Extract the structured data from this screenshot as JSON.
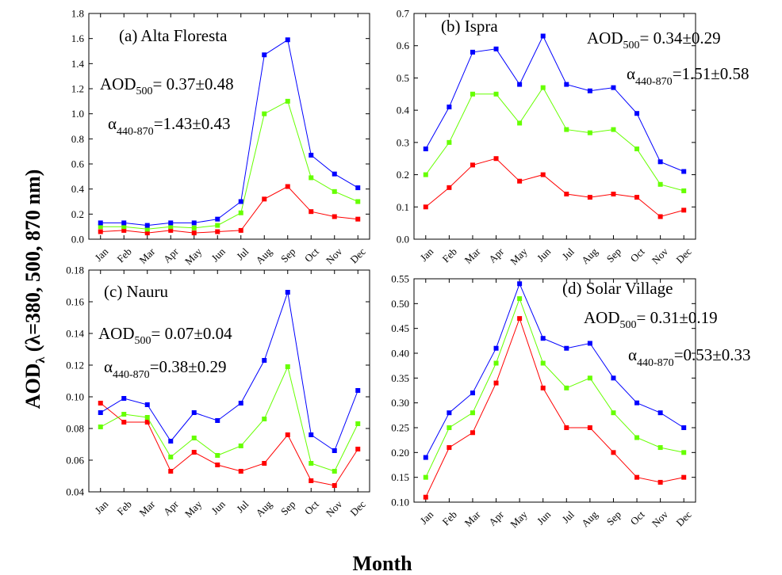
{
  "figure": {
    "ylabel_main": "AOD",
    "ylabel_sub": "λ",
    "ylabel_rest": " (λ=380, 500, 870 nm)",
    "xlabel": "Month"
  },
  "colors": {
    "blue": "#0000ff",
    "green": "#66ff00",
    "red": "#ff0000"
  },
  "chart_data": [
    {
      "type": "line",
      "title": "(a) Alta Floresta",
      "categories": [
        "Jan",
        "Feb",
        "Mar",
        "Apr",
        "May",
        "Jun",
        "Jul",
        "Aug",
        "Sep",
        "Oct",
        "Nov",
        "Dec"
      ],
      "ylim": [
        0,
        1.8
      ],
      "yticks": [
        "0.0",
        "0.2",
        "0.4",
        "0.6",
        "0.8",
        "1.0",
        "1.2",
        "1.4",
        "1.6",
        "1.8"
      ],
      "aod_main": "AOD",
      "aod_sub": "500",
      "aod_value": "= 0.37±0.48",
      "alpha_main": "α",
      "alpha_sub": "440-870",
      "alpha_value": "=1.43±0.43",
      "series": [
        {
          "color": "blue",
          "values": [
            0.13,
            0.13,
            0.11,
            0.13,
            0.13,
            0.16,
            0.3,
            1.47,
            1.59,
            0.67,
            0.52,
            0.41
          ]
        },
        {
          "color": "green",
          "values": [
            0.1,
            0.1,
            0.08,
            0.1,
            0.09,
            0.11,
            0.21,
            1.0,
            1.1,
            0.49,
            0.38,
            0.3
          ]
        },
        {
          "color": "red",
          "values": [
            0.06,
            0.07,
            0.05,
            0.07,
            0.05,
            0.06,
            0.07,
            0.32,
            0.42,
            0.22,
            0.18,
            0.16
          ]
        }
      ]
    },
    {
      "type": "line",
      "title": "(b) Ispra",
      "categories": [
        "Jan",
        "Feb",
        "Mar",
        "Apr",
        "May",
        "Jun",
        "Jul",
        "Aug",
        "Sep",
        "Oct",
        "Nov",
        "Dec"
      ],
      "ylim": [
        0,
        0.7
      ],
      "yticks": [
        "0.0",
        "0.1",
        "0.2",
        "0.3",
        "0.4",
        "0.5",
        "0.6",
        "0.7"
      ],
      "aod_main": "AOD",
      "aod_sub": "500",
      "aod_value": "= 0.34±0.29",
      "alpha_main": "α",
      "alpha_sub": "440-870",
      "alpha_value": "=1.51±0.58",
      "series": [
        {
          "color": "blue",
          "values": [
            0.28,
            0.41,
            0.58,
            0.59,
            0.48,
            0.63,
            0.48,
            0.46,
            0.47,
            0.39,
            0.24,
            0.21
          ]
        },
        {
          "color": "green",
          "values": [
            0.2,
            0.3,
            0.45,
            0.45,
            0.36,
            0.47,
            0.34,
            0.33,
            0.34,
            0.28,
            0.17,
            0.15
          ]
        },
        {
          "color": "red",
          "values": [
            0.1,
            0.16,
            0.23,
            0.25,
            0.18,
            0.2,
            0.14,
            0.13,
            0.14,
            0.13,
            0.07,
            0.09
          ]
        }
      ]
    },
    {
      "type": "line",
      "title": "(c) Nauru",
      "categories": [
        "Jan",
        "Feb",
        "Mar",
        "Apr",
        "May",
        "Jun",
        "Jul",
        "Aug",
        "Sep",
        "Oct",
        "Nov",
        "Dec"
      ],
      "ylim": [
        0.04,
        0.18
      ],
      "yticks": [
        "0.04",
        "0.06",
        "0.08",
        "0.10",
        "0.12",
        "0.14",
        "0.16",
        "0.18"
      ],
      "aod_main": "AOD",
      "aod_sub": "500",
      "aod_value": "= 0.07±0.04",
      "alpha_main": "α",
      "alpha_sub": "440-870",
      "alpha_value": "=0.38±0.29",
      "series": [
        {
          "color": "blue",
          "values": [
            0.09,
            0.099,
            0.095,
            0.072,
            0.09,
            0.085,
            0.096,
            0.123,
            0.166,
            0.076,
            0.066,
            0.104
          ]
        },
        {
          "color": "green",
          "values": [
            0.081,
            0.089,
            0.087,
            0.062,
            0.074,
            0.063,
            0.069,
            0.086,
            0.119,
            0.058,
            0.053,
            0.083
          ]
        },
        {
          "color": "red",
          "values": [
            0.096,
            0.084,
            0.084,
            0.053,
            0.065,
            0.057,
            0.053,
            0.058,
            0.076,
            0.047,
            0.044,
            0.067
          ]
        }
      ]
    },
    {
      "type": "line",
      "title": "(d) Solar Village",
      "categories": [
        "Jan",
        "Feb",
        "Mar",
        "Apr",
        "May",
        "Jun",
        "Jul",
        "Aug",
        "Sep",
        "Oct",
        "Nov",
        "Dec"
      ],
      "ylim": [
        0.1,
        0.55
      ],
      "yticks": [
        "0.10",
        "0.15",
        "0.20",
        "0.25",
        "0.30",
        "0.35",
        "0.40",
        "0.45",
        "0.50",
        "0.55"
      ],
      "aod_main": "AOD",
      "aod_sub": "500",
      "aod_value": "= 0.31±0.19",
      "alpha_main": "α",
      "alpha_sub": "440-870",
      "alpha_value": "=0.53±0.33",
      "series": [
        {
          "color": "blue",
          "values": [
            0.19,
            0.28,
            0.32,
            0.41,
            0.54,
            0.43,
            0.41,
            0.42,
            0.35,
            0.3,
            0.28,
            0.25
          ]
        },
        {
          "color": "green",
          "values": [
            0.15,
            0.25,
            0.28,
            0.38,
            0.51,
            0.38,
            0.33,
            0.35,
            0.28,
            0.23,
            0.21,
            0.2
          ]
        },
        {
          "color": "red",
          "values": [
            0.11,
            0.21,
            0.24,
            0.34,
            0.47,
            0.33,
            0.25,
            0.25,
            0.2,
            0.15,
            0.14,
            0.15
          ]
        }
      ]
    }
  ]
}
